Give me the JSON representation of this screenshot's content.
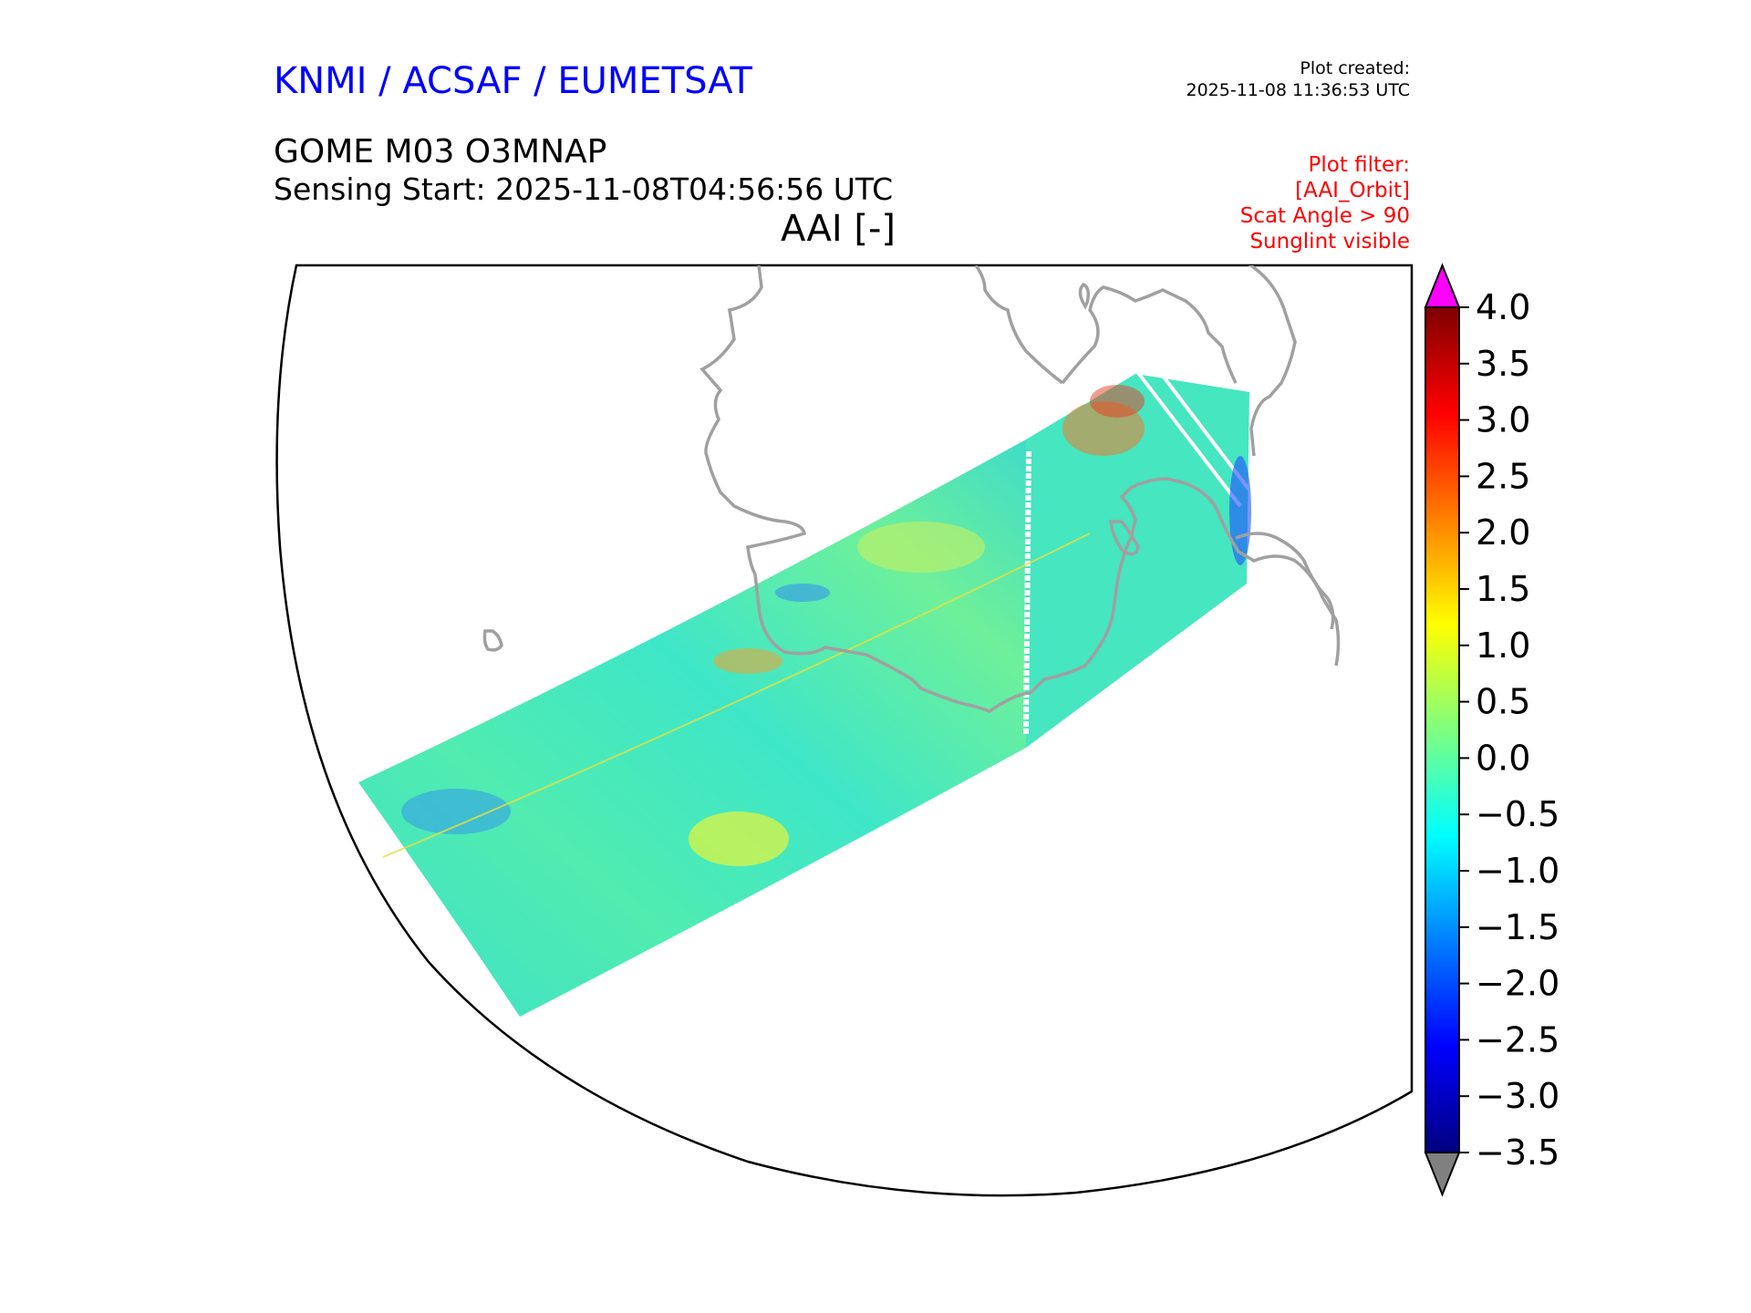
{
  "header": {
    "organization": "KNMI / ACSAF / EUMETSAT",
    "plot_created_label": "Plot created:",
    "plot_created_value": "2025-11-08 11:36:53 UTC",
    "product": "GOME M03 O3MNAP",
    "sensing_start": "Sensing Start: 2025-11-08T04:56:56 UTC",
    "quantity": "AAI [-]"
  },
  "filters": {
    "lines": [
      "Plot filter:",
      "[AAI_Orbit]",
      "Scat Angle > 90",
      "Sunglint visible"
    ]
  },
  "colorbar": {
    "min": -3.5,
    "max": 4.0,
    "ticks": [
      "4.0",
      "3.5",
      "3.0",
      "2.5",
      "2.0",
      "1.5",
      "1.0",
      "0.5",
      "0.0",
      "−0.5",
      "−1.0",
      "−1.5",
      "−2.0",
      "−2.5",
      "−3.0",
      "−3.5"
    ],
    "extend_max_color": "#ff00ff",
    "extend_min_color": "#808080",
    "colormap": [
      "#00007f",
      "#0000ff",
      "#007fff",
      "#00ffff",
      "#7fff7f",
      "#ffff00",
      "#ff7f00",
      "#ff0000",
      "#7f0000"
    ]
  },
  "colors": {
    "coastline": "#a0a0a0",
    "swath_typical": "#3fe8c0"
  }
}
